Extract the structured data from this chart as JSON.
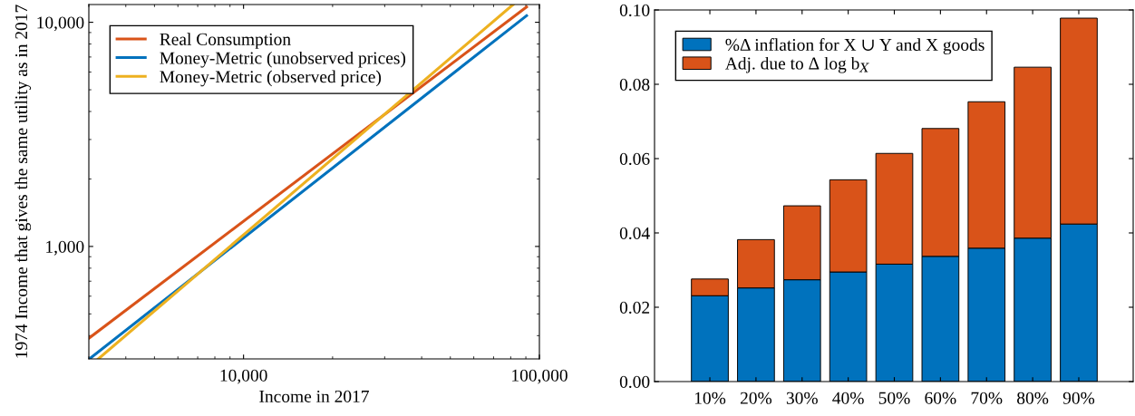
{
  "chart_data": [
    {
      "type": "line",
      "xlabel": "Income in 2017",
      "ylabel": "1974 Income that gives the same utility as in 2017",
      "log": "xy",
      "grid": false,
      "legend": "top left",
      "marker": "none",
      "line_style": "solid",
      "xlim": [
        3000,
        100000
      ],
      "ylim": [
        315,
        12000
      ],
      "xticks": [
        {
          "value": 10000,
          "label": "10,000"
        },
        {
          "value": 100000,
          "label": "100,000"
        }
      ],
      "yticks": [
        {
          "value": 1000,
          "label": "1,000"
        },
        {
          "value": 10000,
          "label": "10,000"
        }
      ],
      "series": [
        {
          "name": "Real Consumption",
          "color": "#d95319",
          "x": [
            3013,
            90500
          ],
          "values": [
            391,
            11700
          ]
        },
        {
          "name": "Money-Metric (unobserved prices)",
          "color": "#0072bd",
          "x": [
            3013,
            90500
          ],
          "values": [
            315,
            10700
          ]
        },
        {
          "name": "Money-Metric (observed price)",
          "color": "#edb120",
          "x": [
            3230,
            81500
          ],
          "values": [
            315,
            12000
          ]
        }
      ]
    },
    {
      "type": "bar",
      "stacked": true,
      "grid": false,
      "legend": "top left",
      "categories": [
        "10%",
        "20%",
        "30%",
        "40%",
        "50%",
        "60%",
        "70%",
        "80%",
        "90%"
      ],
      "ylim": [
        0,
        0.1
      ],
      "yticks": [
        {
          "value": 0,
          "label": "0.00"
        },
        0.02,
        0.04,
        0.06,
        0.08,
        {
          "value": 0.1,
          "label": "0.10"
        }
      ],
      "series": [
        {
          "name": "%Δ inflation for X ∪ Y and X goods",
          "color": "#0072bd",
          "values": [
            0.0231,
            0.0252,
            0.0274,
            0.0295,
            0.0316,
            0.0337,
            0.0359,
            0.0386,
            0.0424
          ]
        },
        {
          "name": "Adj. due to Δ log b$_{X}$",
          "color": "#d95319",
          "values": [
            0.0045,
            0.013,
            0.0199,
            0.0248,
            0.0298,
            0.0344,
            0.0394,
            0.046,
            0.0554
          ]
        }
      ]
    }
  ]
}
